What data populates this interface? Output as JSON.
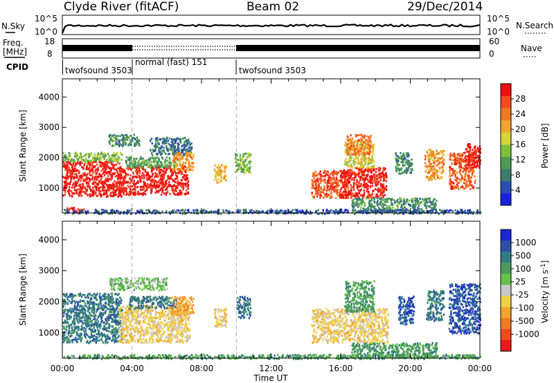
{
  "header": {
    "title": "Clyde River (fitACF)",
    "beam": "Beam 02",
    "date": "29/Dec/2014"
  },
  "noise_panel": {
    "left_label": "N.Sky",
    "right_label": "N.Search",
    "left_ticks": [
      "10^5",
      "10^0"
    ],
    "right_ticks": [
      "10^5",
      "10^0"
    ]
  },
  "freq_panel": {
    "left_label_top": "Freq.",
    "left_label_unit": "[MHz]",
    "right_label": "Nave",
    "left_ticks": [
      "18",
      "8"
    ],
    "right_ticks": [
      "60",
      "0"
    ]
  },
  "cpid": {
    "label": "CPID",
    "segments": [
      {
        "start": 0,
        "end": 4,
        "text": "twofsound 3503"
      },
      {
        "start": 4,
        "end": 10,
        "text": "normal (fast) 151"
      },
      {
        "start": 10,
        "end": 24,
        "text": "twofsound 3503"
      }
    ]
  },
  "x_axis": {
    "label": "Time UT",
    "ticks": [
      "00:00",
      "04:00",
      "08:00",
      "12:00",
      "16:00",
      "20:00",
      "00:00"
    ],
    "tick_hours": [
      0,
      4,
      8,
      12,
      16,
      20,
      24
    ],
    "minor_step_hours": 1,
    "dashed_markers_hours": [
      4,
      10
    ]
  },
  "y_axis": {
    "label": "Slant Range [km]",
    "ticks": [
      "1000",
      "2000",
      "3000",
      "4000"
    ],
    "tick_values": [
      1000,
      2000,
      3000,
      4000
    ],
    "range": [
      180,
      4600
    ]
  },
  "power_colorbar": {
    "title": "Power [dB]",
    "tick_labels": [
      "4",
      "8",
      "12",
      "16",
      "20",
      "24",
      "28"
    ],
    "colors": [
      "#1a22e0",
      "#2b4db3",
      "#3c7a6e",
      "#4f9a52",
      "#7cc03e",
      "#d8d43a",
      "#f3a430",
      "#f07a22",
      "#f24a1e",
      "#ee1010"
    ]
  },
  "velocity_colorbar": {
    "title": "Velocity [m s^-1]",
    "tick_labels": [
      "1000",
      "500",
      "100",
      "25",
      "-25",
      "-100",
      "-500",
      "-1000"
    ],
    "colors": [
      "#1a28d0",
      "#2d4fa8",
      "#2f7c82",
      "#4f9a5a",
      "#62c446",
      "#c8c8c8",
      "#f0d24a",
      "#f4a530",
      "#f27a24",
      "#ee4a1c",
      "#ea1818"
    ]
  },
  "chart_data": [
    {
      "type": "heatmap",
      "title": "",
      "xlabel": "Time UT",
      "ylabel": "Slant Range [km]",
      "colorbar_label": "Power [dB]",
      "xlim_hours": [
        0,
        24
      ],
      "ylim_km": [
        180,
        4600
      ],
      "blobs": [
        {
          "t0": 0.0,
          "t1": 3.4,
          "r_min": 750,
          "r_max": 1900,
          "value": 30
        },
        {
          "t0": 0.0,
          "t1": 3.4,
          "r_min": 1900,
          "r_max": 2200,
          "value": 14
        },
        {
          "t0": 0.2,
          "t1": 1.2,
          "r_min": 220,
          "r_max": 380,
          "value": 30
        },
        {
          "t0": 3.2,
          "t1": 7.2,
          "r_min": 800,
          "r_max": 1750,
          "value": 30
        },
        {
          "t0": 3.6,
          "t1": 6.6,
          "r_min": 1700,
          "r_max": 2050,
          "value": 12
        },
        {
          "t0": 2.6,
          "t1": 4.4,
          "r_min": 2400,
          "r_max": 2800,
          "value": 10
        },
        {
          "t0": 5.0,
          "t1": 7.4,
          "r_min": 2100,
          "r_max": 2700,
          "value": 8
        },
        {
          "t0": 6.3,
          "t1": 7.5,
          "r_min": 1600,
          "r_max": 2200,
          "value": 22
        },
        {
          "t0": 8.7,
          "t1": 9.4,
          "r_min": 1200,
          "r_max": 1800,
          "value": 20
        },
        {
          "t0": 9.9,
          "t1": 10.8,
          "r_min": 1500,
          "r_max": 2200,
          "value": 14
        },
        {
          "t0": 14.3,
          "t1": 16.4,
          "r_min": 700,
          "r_max": 1600,
          "value": 26
        },
        {
          "t0": 15.9,
          "t1": 18.6,
          "r_min": 700,
          "r_max": 1700,
          "value": 30
        },
        {
          "t0": 16.2,
          "t1": 17.9,
          "r_min": 1700,
          "r_max": 2600,
          "value": 18
        },
        {
          "t0": 16.3,
          "t1": 17.7,
          "r_min": 2100,
          "r_max": 2800,
          "value": 24
        },
        {
          "t0": 19.1,
          "t1": 20.1,
          "r_min": 1500,
          "r_max": 2200,
          "value": 10
        },
        {
          "t0": 20.8,
          "t1": 21.9,
          "r_min": 1300,
          "r_max": 2300,
          "value": 22
        },
        {
          "t0": 22.2,
          "t1": 23.7,
          "r_min": 1000,
          "r_max": 2200,
          "value": 26
        },
        {
          "t0": 23.1,
          "t1": 24.0,
          "r_min": 1700,
          "r_max": 2500,
          "value": 30
        },
        {
          "t0": 16.6,
          "t1": 21.5,
          "r_min": 220,
          "r_max": 700,
          "value": 10
        },
        {
          "t0": 0.0,
          "t1": 24.0,
          "r_min": 180,
          "r_max": 320,
          "value": 6
        }
      ]
    },
    {
      "type": "heatmap",
      "title": "",
      "xlabel": "Time UT",
      "ylabel": "Slant Range [km]",
      "colorbar_label": "Velocity [m s^-1]",
      "xlim_hours": [
        0,
        24
      ],
      "ylim_km": [
        180,
        4600
      ],
      "blobs": [
        {
          "t0": 0.0,
          "t1": 3.4,
          "r_min": 700,
          "r_max": 2300,
          "value": 350
        },
        {
          "t0": 3.2,
          "t1": 7.3,
          "r_min": 700,
          "r_max": 1900,
          "value": -200
        },
        {
          "t0": 3.8,
          "t1": 6.6,
          "r_min": 1800,
          "r_max": 2200,
          "value": 100
        },
        {
          "t0": 2.6,
          "t1": 6.0,
          "r_min": 2400,
          "r_max": 2800,
          "value": 0
        },
        {
          "t0": 6.2,
          "t1": 7.5,
          "r_min": 1600,
          "r_max": 2200,
          "value": -600
        },
        {
          "t0": 8.7,
          "t1": 9.4,
          "r_min": 1200,
          "r_max": 1800,
          "value": -400
        },
        {
          "t0": 10.0,
          "t1": 10.8,
          "r_min": 1500,
          "r_max": 2200,
          "value": 200
        },
        {
          "t0": 14.3,
          "t1": 18.7,
          "r_min": 700,
          "r_max": 1800,
          "value": -250
        },
        {
          "t0": 16.2,
          "t1": 17.9,
          "r_min": 1700,
          "r_max": 2700,
          "value": 60
        },
        {
          "t0": 19.3,
          "t1": 20.2,
          "r_min": 1300,
          "r_max": 2200,
          "value": 900
        },
        {
          "t0": 20.9,
          "t1": 21.9,
          "r_min": 1400,
          "r_max": 2400,
          "value": 350
        },
        {
          "t0": 22.2,
          "t1": 24.0,
          "r_min": 1000,
          "r_max": 2600,
          "value": 700
        },
        {
          "t0": 16.6,
          "t1": 21.5,
          "r_min": 220,
          "r_max": 700,
          "value": 60
        },
        {
          "t0": 0.0,
          "t1": 24.0,
          "r_min": 180,
          "r_max": 320,
          "value": 40
        }
      ]
    }
  ]
}
